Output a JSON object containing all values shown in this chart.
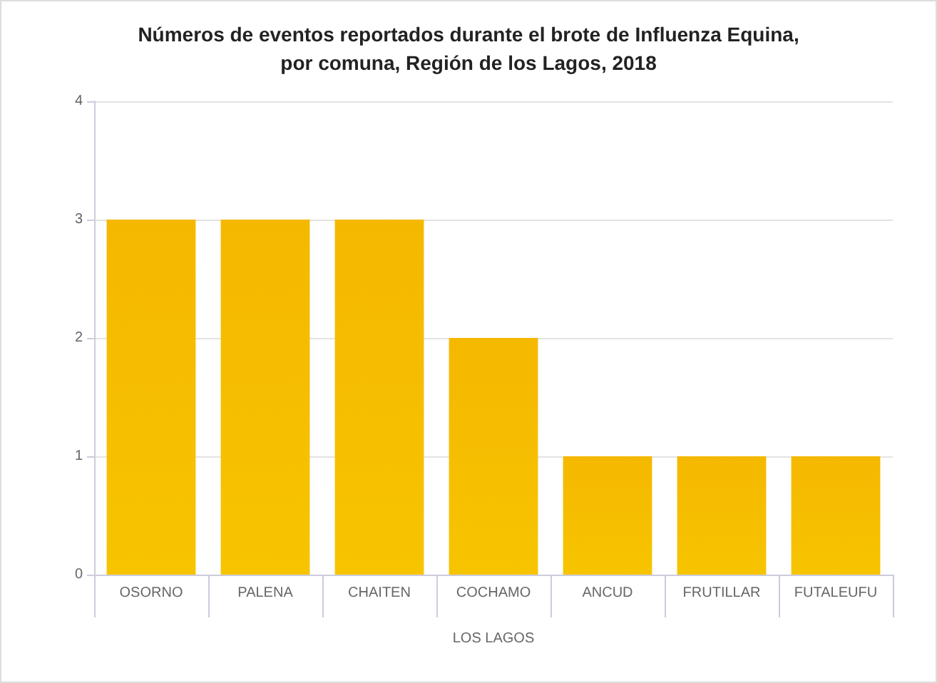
{
  "chart_data": {
    "type": "bar",
    "title": "Números de eventos reportados durante el brote de Influenza Equina,\npor comuna, Región de los Lagos, 2018",
    "categories": [
      "OSORNO",
      "PALENA",
      "CHAITEN",
      "COCHAMO",
      "ANCUD",
      "FRUTILLAR",
      "FUTALEUFU"
    ],
    "values": [
      3,
      3,
      3,
      2,
      1,
      1,
      1
    ],
    "color": "#f5b800",
    "xlabel": "LOS LAGOS",
    "ylim": [
      0,
      4
    ],
    "yticks": [
      0,
      1,
      2,
      3,
      4
    ],
    "grid": "y"
  }
}
